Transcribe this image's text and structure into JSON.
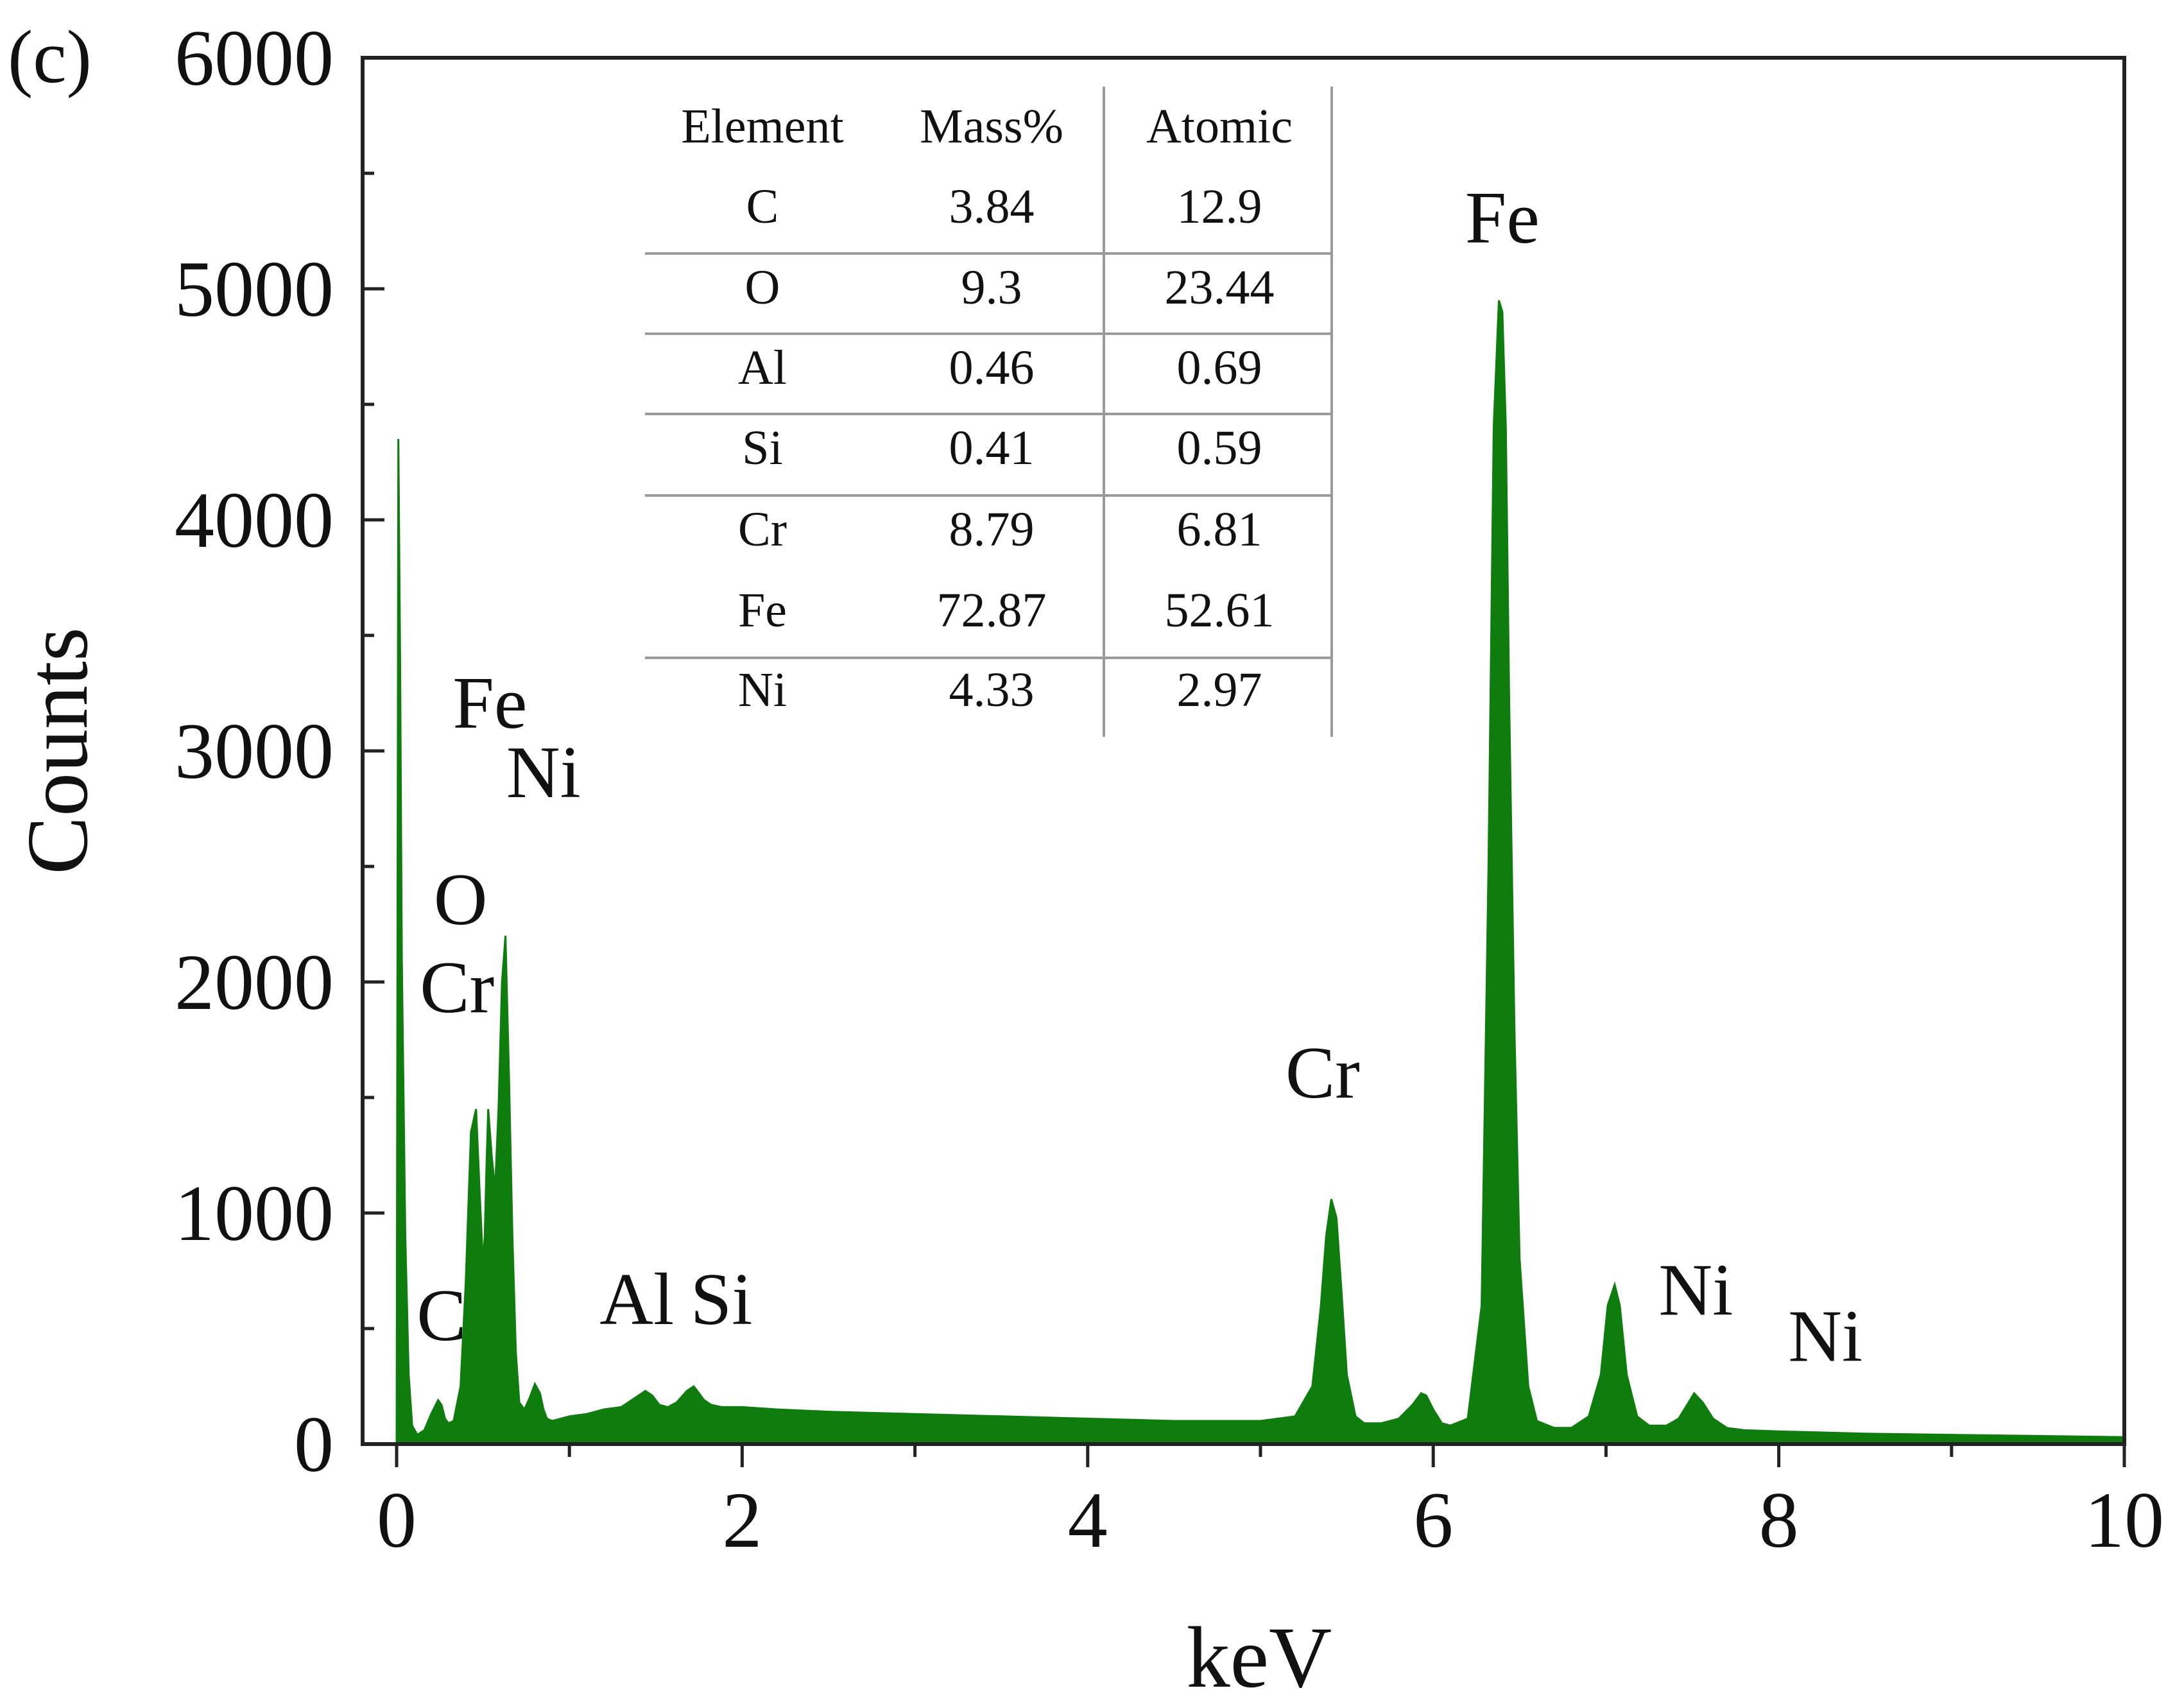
{
  "panel_label": "(c)",
  "colors": {
    "spectrum": "#0e7d0e",
    "axis": "#222222",
    "table_rule": "#9a9a9a"
  },
  "chart_data": {
    "type": "area",
    "title": "",
    "xlabel": "keV",
    "ylabel": "Counts",
    "xlim": [
      0,
      10
    ],
    "ylim": [
      0,
      6000
    ],
    "x_ticks": [
      "0",
      "2",
      "4",
      "6",
      "8",
      "10"
    ],
    "y_ticks": [
      "0",
      "1000",
      "2000",
      "3000",
      "4000",
      "5000",
      "6000"
    ],
    "grid": false,
    "legend": "none",
    "series": [
      {
        "name": "EDS spectrum",
        "x": [
          0,
          0.01,
          0.02,
          0.03,
          0.05,
          0.07,
          0.09,
          0.12,
          0.16,
          0.2,
          0.24,
          0.26,
          0.28,
          0.3,
          0.33,
          0.37,
          0.4,
          0.43,
          0.46,
          0.48,
          0.5,
          0.51,
          0.52,
          0.53,
          0.55,
          0.57,
          0.59,
          0.61,
          0.63,
          0.65,
          0.67,
          0.69,
          0.71,
          0.74,
          0.77,
          0.8,
          0.83,
          0.85,
          0.87,
          0.9,
          0.95,
          1.0,
          1.1,
          1.2,
          1.3,
          1.38,
          1.44,
          1.48,
          1.52,
          1.57,
          1.62,
          1.68,
          1.72,
          1.75,
          1.78,
          1.82,
          1.88,
          2.0,
          2.2,
          2.5,
          3.0,
          3.5,
          4.0,
          4.5,
          5.0,
          5.2,
          5.3,
          5.35,
          5.38,
          5.41,
          5.44,
          5.47,
          5.5,
          5.55,
          5.6,
          5.7,
          5.8,
          5.88,
          5.93,
          5.96,
          6.0,
          6.05,
          6.1,
          6.2,
          6.28,
          6.32,
          6.35,
          6.38,
          6.4,
          6.42,
          6.44,
          6.47,
          6.5,
          6.55,
          6.6,
          6.7,
          6.8,
          6.9,
          6.97,
          7.01,
          7.05,
          7.08,
          7.12,
          7.18,
          7.25,
          7.35,
          7.42,
          7.47,
          7.51,
          7.56,
          7.62,
          7.7,
          7.8,
          8.0,
          8.5,
          9.0,
          9.5,
          10.0
        ],
        "y": [
          0,
          4350,
          3400,
          2100,
          900,
          300,
          80,
          40,
          60,
          130,
          190,
          170,
          110,
          90,
          100,
          250,
          700,
          1350,
          1450,
          1100,
          780,
          900,
          1200,
          1450,
          1250,
          1100,
          1450,
          2000,
          2200,
          1600,
          900,
          400,
          180,
          150,
          200,
          260,
          220,
          150,
          110,
          100,
          110,
          120,
          130,
          150,
          160,
          200,
          230,
          210,
          170,
          160,
          180,
          230,
          250,
          220,
          190,
          170,
          160,
          160,
          150,
          140,
          130,
          120,
          110,
          100,
          100,
          120,
          250,
          600,
          900,
          1060,
          980,
          650,
          300,
          120,
          90,
          90,
          110,
          170,
          220,
          210,
          150,
          90,
          80,
          110,
          600,
          2500,
          4400,
          4950,
          4900,
          4400,
          3200,
          1800,
          800,
          250,
          100,
          70,
          70,
          120,
          300,
          600,
          690,
          600,
          300,
          120,
          80,
          80,
          110,
          170,
          220,
          180,
          110,
          70,
          60,
          55,
          45,
          40,
          35,
          30
        ]
      }
    ],
    "annotations": [
      {
        "id": "fe-main",
        "text": "Fe",
        "x": 6.4,
        "y": 5200
      },
      {
        "id": "fe-l",
        "text": "Fe",
        "x": 0.54,
        "y": 3100
      },
      {
        "id": "ni-l",
        "text": "Ni",
        "x": 0.85,
        "y": 2800
      },
      {
        "id": "o",
        "text": "O",
        "x": 0.37,
        "y": 2250
      },
      {
        "id": "cr-l",
        "text": "Cr",
        "x": 0.35,
        "y": 1870
      },
      {
        "id": "cr-k",
        "text": "Cr",
        "x": 5.36,
        "y": 1500
      },
      {
        "id": "c",
        "text": "C",
        "x": 0.26,
        "y": 450
      },
      {
        "id": "al",
        "text": "Al",
        "x": 1.39,
        "y": 520
      },
      {
        "id": "si",
        "text": "Si",
        "x": 1.88,
        "y": 520
      },
      {
        "id": "ni-ka",
        "text": "Ni",
        "x": 7.52,
        "y": 560
      },
      {
        "id": "ni-kb",
        "text": "Ni",
        "x": 8.27,
        "y": 360
      }
    ],
    "inset_table": {
      "headers": [
        "Element",
        "Mass%",
        "Atomic"
      ],
      "rows": [
        [
          "C",
          "3.84",
          "12.9"
        ],
        [
          "O",
          "9.3",
          "23.44"
        ],
        [
          "Al",
          "0.46",
          "0.69"
        ],
        [
          "Si",
          "0.41",
          "0.59"
        ],
        [
          "Cr",
          "8.79",
          "6.81"
        ],
        [
          "Fe",
          "72.87",
          "52.61"
        ],
        [
          "Ni",
          "4.33",
          "2.97"
        ]
      ]
    }
  }
}
